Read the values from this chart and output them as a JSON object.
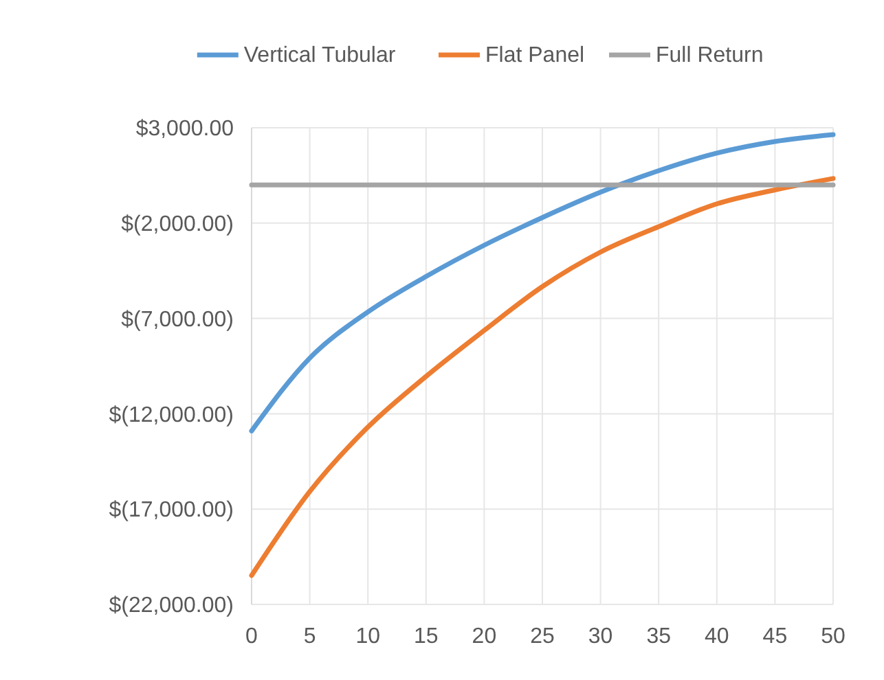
{
  "chart_data": {
    "type": "line",
    "x": [
      0,
      5,
      10,
      15,
      20,
      25,
      30,
      35,
      40,
      45,
      50
    ],
    "series": [
      {
        "name": "Vertical Tubular",
        "color": "#5b9bd5",
        "values": [
          -12900,
          -9080,
          -6660,
          -4800,
          -3160,
          -1710,
          -380,
          750,
          1670,
          2280,
          2640
        ]
      },
      {
        "name": "Flat Panel",
        "color": "#ed7d31",
        "values": [
          -20480,
          -16080,
          -12700,
          -10040,
          -7630,
          -5330,
          -3520,
          -2190,
          -990,
          -260,
          340
        ]
      },
      {
        "name": "Full Return",
        "color": "#a5a5a5",
        "values": [
          0,
          0,
          0,
          0,
          0,
          0,
          0,
          0,
          0,
          0,
          0
        ]
      }
    ],
    "xlim": [
      0,
      50
    ],
    "xticks": [
      0,
      5,
      10,
      15,
      20,
      25,
      30,
      35,
      40,
      45,
      50
    ],
    "ylim": [
      -22000,
      3000
    ],
    "yticks": [
      {
        "value": 3000,
        "label": "$3,000.00"
      },
      {
        "value": -2000,
        "label": "$(2,000.00)"
      },
      {
        "value": -7000,
        "label": "$(7,000.00)"
      },
      {
        "value": -12000,
        "label": "$(12,000.00)"
      },
      {
        "value": -17000,
        "label": "$(17,000.00)"
      },
      {
        "value": -22000,
        "label": "$(22,000.00)"
      }
    ],
    "grid": true,
    "legend": "top",
    "line_style": "solid"
  }
}
